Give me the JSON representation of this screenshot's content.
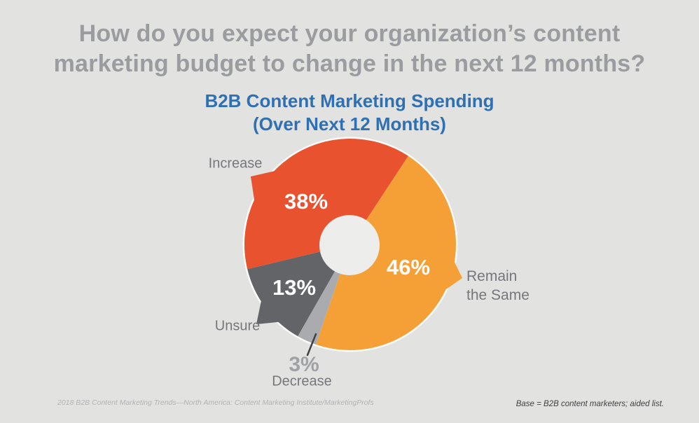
{
  "page": {
    "background_color": "#E2E2E0",
    "title_line1": "How do you expect your organization’s content",
    "title_line2": "marketing budget to change in the next 12 months?",
    "title_color": "#9B9CA0",
    "source_left": "2018 B2B Content Marketing Trends—North America: Content Marketing Institute/MarketingProfs",
    "source_right": "Base = B2B content marketers; aided list."
  },
  "chart_heading": {
    "line1": "B2B Content Marketing Spending",
    "line2": "(Over Next 12 Months)",
    "color": "#2F70B3"
  },
  "chart_data": {
    "type": "pie",
    "title": "B2B Content Marketing Spending (Over Next 12 Months)",
    "donut": true,
    "clockwise": true,
    "start_angle_deg": 256.5,
    "total": 100,
    "units": "percent",
    "hole_color": "#EDEDEB",
    "rim_color": "#FAFAF8",
    "segments": [
      {
        "label": "Increase",
        "value": 38,
        "pct_label": "38%",
        "color": "#E8522F"
      },
      {
        "label": "Remain the Same",
        "value": 46,
        "pct_label": "46%",
        "color": "#F5A037"
      },
      {
        "label": "Decrease",
        "value": 3,
        "pct_label": "3%",
        "color": "#A9ABAE"
      },
      {
        "label": "Unsure",
        "value": 13,
        "pct_label": "13%",
        "color": "#626468"
      }
    ]
  }
}
